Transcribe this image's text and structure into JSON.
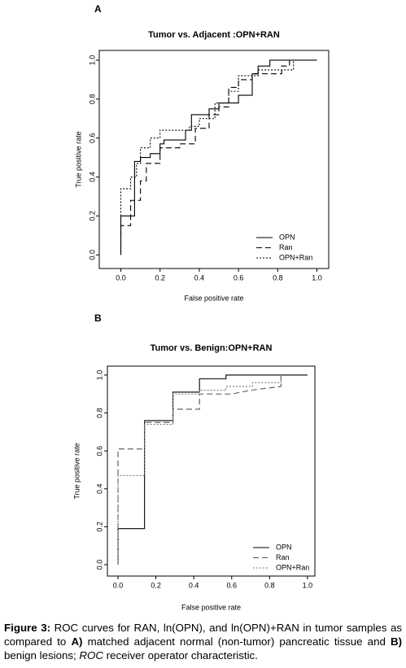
{
  "chart_data": [
    {
      "type": "line",
      "panel_label": "A",
      "title": "Tumor vs. Adjacent :OPN+RAN",
      "x_label": "False positive rate",
      "y_label": "True positive rate",
      "xlim": [
        -0.11,
        1.06
      ],
      "ylim": [
        -0.07,
        1.05
      ],
      "xticks": [
        {
          "value": 0,
          "label": "0.0"
        },
        0.2,
        0.4,
        0.6,
        0.8,
        {
          "value": 1,
          "label": "1.0"
        }
      ],
      "yticks": [
        {
          "value": 0,
          "label": "0.0"
        },
        0.2,
        0.4,
        0.6,
        0.8,
        {
          "value": 1,
          "label": "1.0"
        }
      ],
      "legend": "bottom-right",
      "series": [
        {
          "name": "OPN",
          "color": "#000000",
          "line_style": "solid",
          "x": [
            0,
            0,
            0.07,
            0.07,
            0.1,
            0.1,
            0.15,
            0.15,
            0.2,
            0.2,
            0.22,
            0.22,
            0.33,
            0.33,
            0.36,
            0.36,
            0.45,
            0.45,
            0.5,
            0.5,
            0.6,
            0.6,
            0.67,
            0.67,
            0.7,
            0.7,
            0.76,
            0.76,
            1.0
          ],
          "values": [
            0,
            0.2,
            0.2,
            0.48,
            0.48,
            0.5,
            0.5,
            0.52,
            0.52,
            0.57,
            0.57,
            0.59,
            0.59,
            0.64,
            0.64,
            0.72,
            0.72,
            0.75,
            0.75,
            0.78,
            0.78,
            0.82,
            0.82,
            0.93,
            0.93,
            0.97,
            0.97,
            1.0,
            1.0
          ]
        },
        {
          "name": "Ran",
          "color": "#000000",
          "line_style": "dashed",
          "x": [
            0,
            0,
            0.05,
            0.05,
            0.1,
            0.1,
            0.13,
            0.13,
            0.2,
            0.2,
            0.3,
            0.3,
            0.38,
            0.38,
            0.45,
            0.45,
            0.5,
            0.5,
            0.55,
            0.55,
            0.6,
            0.6,
            0.67,
            0.67,
            0.82,
            0.82,
            0.86,
            0.86
          ],
          "values": [
            0,
            0.15,
            0.15,
            0.28,
            0.28,
            0.38,
            0.38,
            0.47,
            0.47,
            0.55,
            0.55,
            0.57,
            0.57,
            0.65,
            0.65,
            0.72,
            0.72,
            0.76,
            0.76,
            0.86,
            0.86,
            0.9,
            0.9,
            0.93,
            0.93,
            0.97,
            0.97,
            1.0
          ]
        },
        {
          "name": "OPN+Ran",
          "color": "#000000",
          "line_style": "dotted",
          "x": [
            0,
            0,
            0.05,
            0.05,
            0.08,
            0.08,
            0.1,
            0.1,
            0.15,
            0.15,
            0.2,
            0.2,
            0.35,
            0.35,
            0.4,
            0.4,
            0.48,
            0.48,
            0.55,
            0.55,
            0.6,
            0.6,
            0.7,
            0.7,
            0.88,
            0.88
          ],
          "values": [
            0.1,
            0.34,
            0.34,
            0.4,
            0.4,
            0.47,
            0.47,
            0.55,
            0.55,
            0.6,
            0.6,
            0.64,
            0.64,
            0.66,
            0.66,
            0.7,
            0.7,
            0.78,
            0.78,
            0.84,
            0.84,
            0.92,
            0.92,
            0.95,
            0.95,
            1.0
          ]
        }
      ]
    },
    {
      "type": "line",
      "panel_label": "B",
      "title": "Tumor vs. Benign:OPN+RAN",
      "x_label": "False positive rate",
      "y_label": "True positive rate",
      "xlim": [
        -0.056,
        1.039
      ],
      "ylim": [
        -0.06,
        1.047
      ],
      "xticks": [
        {
          "value": 0,
          "label": "0.0"
        },
        0.2,
        0.4,
        0.6,
        0.8,
        {
          "value": 1,
          "label": "1.0"
        }
      ],
      "yticks": [
        {
          "value": 0,
          "label": "0.0"
        },
        0.2,
        0.4,
        0.6,
        0.8,
        {
          "value": 1,
          "label": "1.0"
        }
      ],
      "legend": "bottom-right",
      "series": [
        {
          "name": "OPN",
          "color": "#000000",
          "line_style": "solid",
          "x": [
            0,
            0,
            0.14,
            0.14,
            0.29,
            0.29,
            0.43,
            0.43,
            0.57,
            0.57,
            1.0
          ],
          "values": [
            0,
            0.19,
            0.19,
            0.76,
            0.76,
            0.91,
            0.91,
            0.98,
            0.98,
            1.0,
            1.0
          ]
        },
        {
          "name": "Ran",
          "color": "#555555",
          "line_style": "dashed",
          "x": [
            0,
            0,
            0.14,
            0.14,
            0.29,
            0.29,
            0.43,
            0.43,
            0.6,
            0.7,
            0.86,
            0.86
          ],
          "values": [
            0,
            0.61,
            0.61,
            0.75,
            0.75,
            0.82,
            0.82,
            0.9,
            0.9,
            0.92,
            0.94,
            1.0
          ]
        },
        {
          "name": "OPN+Ran",
          "color": "#777777",
          "line_style": "dotted",
          "x": [
            0,
            0,
            0.14,
            0.14,
            0.29,
            0.29,
            0.43,
            0.43,
            0.57,
            0.57,
            0.71,
            0.71,
            0.86,
            0.86
          ],
          "values": [
            0,
            0.47,
            0.47,
            0.74,
            0.74,
            0.9,
            0.9,
            0.92,
            0.92,
            0.94,
            0.94,
            0.96,
            0.96,
            1.0
          ]
        }
      ]
    }
  ],
  "caption": [
    {
      "text": "Figure 3:",
      "style": "bold"
    },
    {
      "text": " ROC curves for RAN, ln(OPN), and ln(OPN)+RAN in tumor samples as compared to ",
      "style": "normal"
    },
    {
      "text": "A)",
      "style": "bold"
    },
    {
      "text": " matched adjacent normal (non-tumor) pancreatic tissue and ",
      "style": "normal"
    },
    {
      "text": "B)",
      "style": "bold"
    },
    {
      "text": " benign lesions; ",
      "style": "normal"
    },
    {
      "text": "ROC",
      "style": "italic"
    },
    {
      "text": " receiver operator characteristic.",
      "style": "normal"
    }
  ]
}
